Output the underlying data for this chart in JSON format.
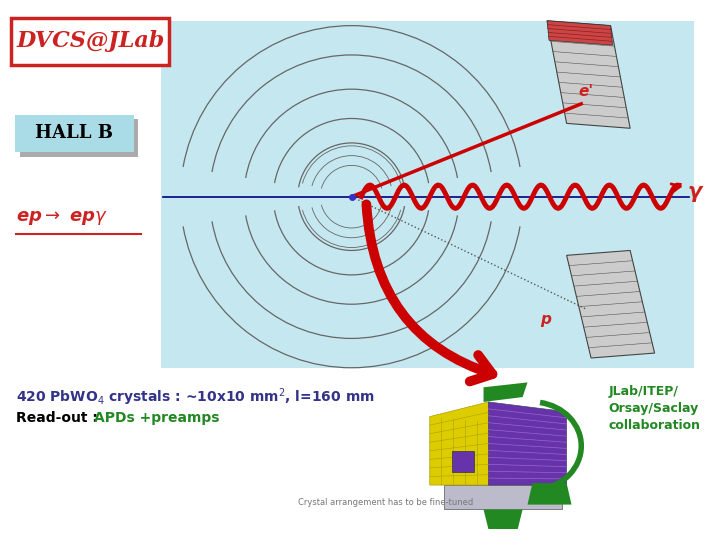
{
  "bg_color": "#ffffff",
  "diagram_bg": "#c5e8f0",
  "title_text": "DVCS@JLab",
  "title_color": "#cc2222",
  "title_box_color": "#cc2222",
  "hall_b_text": "HALL B",
  "hall_b_bg": "#aadce8",
  "hall_b_shadow": "#aaaaaa",
  "reaction_color": "#cc2222",
  "gamma_label": "γ",
  "gamma_color": "#cc2222",
  "eprime_label": "e'",
  "eprime_color": "#cc2222",
  "p_label": "p",
  "p_color": "#cc2222",
  "crystal_color": "#333388",
  "readout_color": "#000000",
  "apds_color": "#228822",
  "collab_text": "JLab/ITEP/\nOrsay/Saclay\ncollaboration",
  "collab_color": "#228822",
  "arrow_color": "#cc0000",
  "wave_color": "#cc0000",
  "line_color": "#000080",
  "arc_color": "#666666",
  "ec_color": "#cccccc",
  "ec_edge": "#444444"
}
